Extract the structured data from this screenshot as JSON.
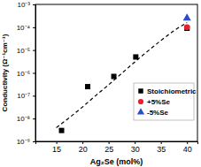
{
  "chart_data": {
    "type": "scatter",
    "x_label": "Ag₂Se (mol%)",
    "y_label": "Conductivity (Ω⁻¹cm⁻¹)",
    "log": "y",
    "legend": "lower right",
    "xlim": [
      11,
      42
    ],
    "xticks": [
      15,
      20,
      25,
      30,
      35,
      40
    ],
    "ylim": [
      1e-09,
      0.001
    ],
    "yticks": [
      {
        "value": 1e-09,
        "label": "10⁻⁹"
      },
      {
        "value": 1e-08,
        "label": "10⁻⁸"
      },
      {
        "value": 1e-07,
        "label": "10⁻⁷"
      },
      {
        "value": 1e-06,
        "label": "10⁻⁶"
      },
      {
        "value": 1e-05,
        "label": "10⁻⁵"
      },
      {
        "value": 0.0001,
        "label": "10⁻⁴"
      },
      {
        "value": 0.001,
        "label": "10⁻³"
      }
    ],
    "series": [
      {
        "type": "line",
        "color": "#000000",
        "line_style": "dashed",
        "x": [
          15,
          17.5,
          20,
          22.5,
          25,
          27.5,
          30,
          32.5,
          35,
          37.5,
          40
        ],
        "values": [
          4e-09,
          1.1e-08,
          3.2e-08,
          1e-07,
          3e-07,
          9.5e-07,
          3e-06,
          9e-06,
          2.6e-05,
          7e-05,
          0.00016
        ]
      },
      {
        "name": "Stoichiometric",
        "color": "#000000",
        "marker": "square",
        "x": [
          16,
          21,
          26,
          30.2,
          40
        ],
        "values": [
          3e-09,
          2.5e-07,
          7e-07,
          5e-06,
          9e-05
        ]
      },
      {
        "name": "+5%Se",
        "color": "#e8202a",
        "marker": "circle",
        "x": [
          40
        ],
        "values": [
          0.0001
        ]
      },
      {
        "name": "-5%Se",
        "color": "#2b4ccf",
        "marker": "triangle",
        "x": [
          40
        ],
        "values": [
          0.00025
        ]
      }
    ]
  }
}
